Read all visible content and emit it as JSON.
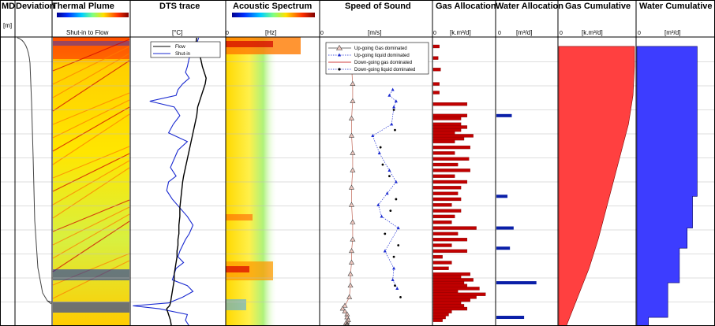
{
  "colors": {
    "gas_bar": "#c00000",
    "gas_cumulative": "#ff4040",
    "water": "#0a1fa8",
    "water_cumulative": "#3d3dff",
    "flow_trace": "#000000",
    "shutin_trace": "#1a2ad0",
    "sos_gas": "#c8786a",
    "sos_liquid": "#1a2ad0"
  },
  "tracks": {
    "md": {
      "title": "MD",
      "unit": "[m]"
    },
    "deviation": {
      "title": "Deviation"
    },
    "thermal": {
      "title": "Thermal Plume",
      "colorbar_label": "Shut-in to Flow"
    },
    "dts": {
      "title": "DTS trace",
      "unit": "[°C]",
      "legend": [
        "Flow",
        "Shut-in"
      ]
    },
    "acoustic": {
      "title": "Acoustic Spectrum",
      "unit": "[Hz]",
      "tick0": "0"
    },
    "sos": {
      "title": "Speed of Sound",
      "unit": "[m/s]",
      "tick0": "0",
      "legend": [
        "Up-going Gas dominated",
        "Up-going liquid dominated",
        "Down-going gas dominated",
        "Down-going liquid dominated"
      ]
    },
    "gas_alloc": {
      "title": "Gas Allocation",
      "unit": "[k.m³/d]",
      "tick0": "0"
    },
    "water_alloc": {
      "title": "Water Allocation",
      "unit": "[m³/d]",
      "tick0": "0"
    },
    "gas_cum": {
      "title": "Gas Cumulative",
      "unit": "[k.m³/d]",
      "tick0": "0"
    },
    "water_cum": {
      "title": "Water Cumulative",
      "unit": "[m³/d]",
      "tick0": "0"
    }
  },
  "chart_data": [
    {
      "type": "line",
      "track": "DTS trace",
      "series": [
        {
          "name": "Flow",
          "x": [
            0.7,
            0.69,
            0.72,
            0.74,
            0.76,
            0.78,
            0.8,
            0.79,
            0.77,
            0.75,
            0.73,
            0.71,
            0.7,
            0.68,
            0.66,
            0.64,
            0.62,
            0.6,
            0.58,
            0.56,
            0.55,
            0.54,
            0.53,
            0.52,
            0.52,
            0.51,
            0.51,
            0.5,
            0.5,
            0.49,
            0.49,
            0.48,
            0.47,
            0.46,
            0.46,
            0.45,
            0.44,
            0.43,
            0.42,
            0.41,
            0.38,
            0.4,
            0.42,
            0.43
          ],
          "y": [
            0,
            0.02,
            0.05,
            0.07,
            0.1,
            0.12,
            0.14,
            0.16,
            0.18,
            0.2,
            0.22,
            0.24,
            0.27,
            0.3,
            0.33,
            0.36,
            0.39,
            0.42,
            0.45,
            0.48,
            0.5,
            0.53,
            0.56,
            0.59,
            0.62,
            0.65,
            0.68,
            0.7,
            0.72,
            0.74,
            0.76,
            0.78,
            0.8,
            0.82,
            0.84,
            0.86,
            0.88,
            0.9,
            0.92,
            0.93,
            0.94,
            0.96,
            0.98,
            1.0
          ]
        },
        {
          "name": "Shut-in",
          "x": [
            0.72,
            0.7,
            0.66,
            0.62,
            0.6,
            0.58,
            0.62,
            0.55,
            0.5,
            0.48,
            0.2,
            0.46,
            0.52,
            0.45,
            0.4,
            0.6,
            0.5,
            0.46,
            0.42,
            0.48,
            0.4,
            0.38,
            0.44,
            0.52,
            0.6,
            0.66,
            0.62,
            0.58,
            0.55,
            0.52,
            0.5,
            0.56,
            0.48,
            0.46,
            0.44,
            0.6,
            0.66,
            0.55,
            0.4,
            0.02,
            0.3,
            0.6,
            0.58,
            0.62
          ],
          "y": [
            0,
            0.02,
            0.05,
            0.07,
            0.1,
            0.12,
            0.14,
            0.16,
            0.18,
            0.2,
            0.22,
            0.24,
            0.27,
            0.3,
            0.33,
            0.36,
            0.39,
            0.42,
            0.45,
            0.48,
            0.5,
            0.53,
            0.56,
            0.59,
            0.62,
            0.65,
            0.68,
            0.7,
            0.72,
            0.74,
            0.76,
            0.78,
            0.8,
            0.82,
            0.84,
            0.86,
            0.88,
            0.9,
            0.92,
            0.93,
            0.94,
            0.96,
            0.98,
            1.0
          ]
        }
      ]
    },
    {
      "type": "scatter",
      "track": "Speed of Sound",
      "series": [
        {
          "name": "Up-going Gas dominated",
          "x": [
            0.28,
            0.28,
            0.29,
            0.29,
            0.28,
            0.28,
            0.29,
            0.29,
            0.28,
            0.28,
            0.29,
            0.29,
            0.28,
            0.28,
            0.27,
            0.27,
            0.26,
            0.22,
            0.2,
            0.22,
            0.24,
            0.24,
            0.25,
            0.24,
            0.23,
            0.24,
            0.24,
            0.24
          ],
          "y": [
            0.05,
            0.1,
            0.16,
            0.22,
            0.28,
            0.34,
            0.4,
            0.46,
            0.52,
            0.58,
            0.64,
            0.7,
            0.74,
            0.78,
            0.82,
            0.86,
            0.9,
            0.93,
            0.94,
            0.95,
            0.96,
            0.97,
            0.98,
            0.985,
            0.99,
            0.993,
            0.996,
            1.0
          ]
        },
        {
          "name": "Up-going liquid dominated",
          "x": [
            0.65,
            0.62,
            0.68,
            0.66,
            0.64,
            0.47,
            0.53,
            0.62,
            0.68,
            0.6,
            0.52,
            0.55,
            0.7,
            0.58,
            0.66,
            0.65,
            0.69
          ],
          "y": [
            0.18,
            0.2,
            0.22,
            0.24,
            0.3,
            0.34,
            0.4,
            0.46,
            0.5,
            0.54,
            0.58,
            0.62,
            0.66,
            0.74,
            0.8,
            0.84,
            0.87
          ]
        },
        {
          "name": "Down-going liquid dominated",
          "x": [
            0.66,
            0.67,
            0.54,
            0.56,
            0.62,
            0.68,
            0.63,
            0.58,
            0.7,
            0.66,
            0.67,
            0.72
          ],
          "y": [
            0.25,
            0.32,
            0.38,
            0.44,
            0.48,
            0.56,
            0.6,
            0.68,
            0.72,
            0.76,
            0.86,
            0.9
          ]
        }
      ]
    },
    {
      "type": "bar",
      "track": "Gas Allocation",
      "depth": [
        0.03,
        0.07,
        0.11,
        0.16,
        0.19,
        0.23,
        0.27,
        0.28,
        0.3,
        0.31,
        0.32,
        0.33,
        0.34,
        0.35,
        0.36,
        0.38,
        0.4,
        0.42,
        0.44,
        0.46,
        0.48,
        0.5,
        0.52,
        0.54,
        0.56,
        0.58,
        0.6,
        0.62,
        0.64,
        0.66,
        0.68,
        0.7,
        0.72,
        0.74,
        0.76,
        0.78,
        0.8,
        0.82,
        0.83,
        0.84,
        0.85,
        0.86,
        0.87,
        0.88,
        0.89,
        0.9,
        0.91,
        0.92,
        0.93,
        0.94,
        0.95,
        0.96,
        0.97,
        0.98
      ],
      "values": [
        0.1,
        0.08,
        0.12,
        0.1,
        0.1,
        0.55,
        0.55,
        0.45,
        0.45,
        0.55,
        0.45,
        0.35,
        0.65,
        0.5,
        0.35,
        0.6,
        0.35,
        0.58,
        0.4,
        0.6,
        0.35,
        0.55,
        0.45,
        0.4,
        0.45,
        0.3,
        0.45,
        0.35,
        0.3,
        0.7,
        0.4,
        0.55,
        0.3,
        0.55,
        0.15,
        0.3,
        0.25,
        0.6,
        0.45,
        0.65,
        0.5,
        0.55,
        0.75,
        0.4,
        0.85,
        0.7,
        0.6,
        0.45,
        0.5,
        0.55,
        0.3,
        0.25,
        0.2,
        0.15
      ]
    },
    {
      "type": "bar",
      "track": "Water Allocation",
      "depth": [
        0.27,
        0.55,
        0.66,
        0.73,
        0.85,
        0.97
      ],
      "values": [
        0.25,
        0.18,
        0.28,
        0.22,
        0.65,
        0.45
      ]
    },
    {
      "type": "area",
      "track": "Gas Cumulative",
      "depth": [
        0.03,
        0.1,
        0.2,
        0.3,
        0.4,
        0.5,
        0.6,
        0.7,
        0.8,
        0.9,
        1.0
      ],
      "values": [
        1.0,
        1.0,
        0.98,
        0.92,
        0.82,
        0.72,
        0.62,
        0.52,
        0.4,
        0.25,
        0.1
      ]
    },
    {
      "type": "area",
      "track": "Water Cumulative",
      "depth": [
        0.03,
        0.27,
        0.55,
        0.66,
        0.73,
        0.85,
        0.97,
        1.0
      ],
      "values": [
        0.78,
        0.78,
        0.72,
        0.65,
        0.55,
        0.4,
        0.15,
        0.1
      ]
    }
  ]
}
